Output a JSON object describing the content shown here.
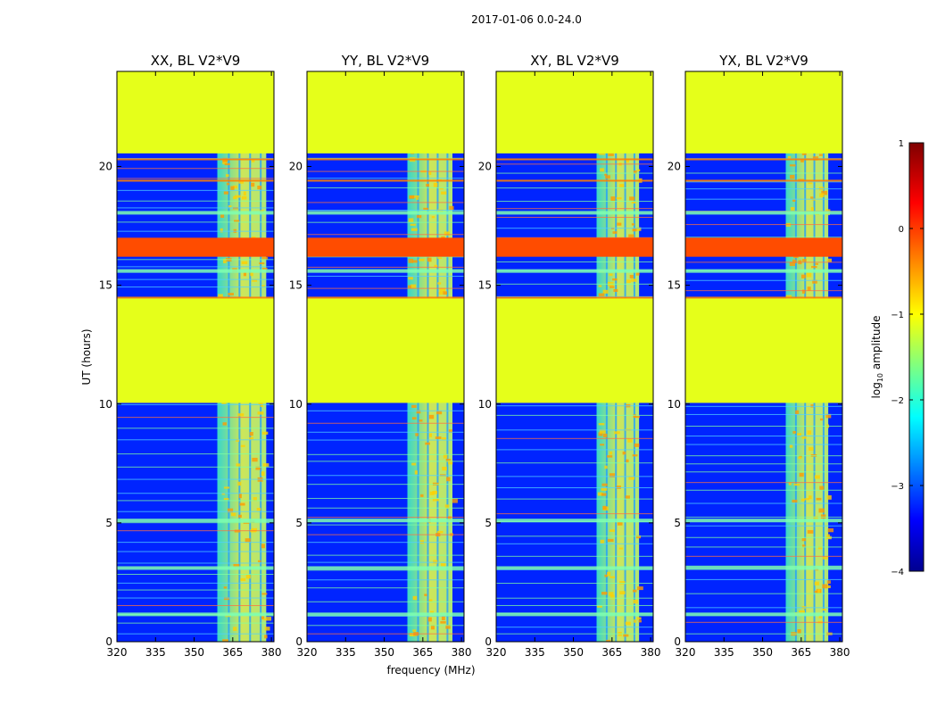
{
  "suptitle": "2017-01-06 0.0-24.0",
  "chart_data": {
    "type": "heatmap",
    "xlabel": "frequency (MHz)",
    "ylabel": "UT (hours)",
    "xlim": [
      320,
      381
    ],
    "ylim": [
      0,
      24
    ],
    "xticks": [
      320,
      335,
      350,
      365,
      380
    ],
    "yticks": [
      0,
      5,
      10,
      15,
      20
    ],
    "panels": [
      {
        "title": "XX, BL V2*V9",
        "band_start_mhz": 359,
        "band_end_mhz": 378,
        "band_sharp": true
      },
      {
        "title": "YY, BL V2*V9",
        "band_start_mhz": 359,
        "band_end_mhz": 376.5,
        "band_sharp": false
      },
      {
        "title": "XY, BL V2*V9",
        "band_start_mhz": 359,
        "band_end_mhz": 375.5,
        "band_sharp": true
      },
      {
        "title": "YX, BL V2*V9",
        "band_start_mhz": 359,
        "band_end_mhz": 375.5,
        "band_sharp": false
      }
    ],
    "masked_ut_ranges": [
      [
        10.05,
        14.45
      ],
      [
        20.55,
        24.0
      ]
    ],
    "masked_value_log10": -1.0,
    "flagged_ut_ranges": [
      [
        16.2,
        17.0
      ]
    ],
    "flagged_value_log10": 0.0,
    "background_value_log10": -3.2,
    "band_value_log10": -1.3,
    "colorbar": {
      "label_main": "log",
      "label_sub": "10",
      "label_rest": " amplitude",
      "range": [
        -4,
        1
      ],
      "ticks": [
        "1",
        "0",
        "−1",
        "−2",
        "−3",
        "−4"
      ],
      "colormap": "jet"
    }
  }
}
